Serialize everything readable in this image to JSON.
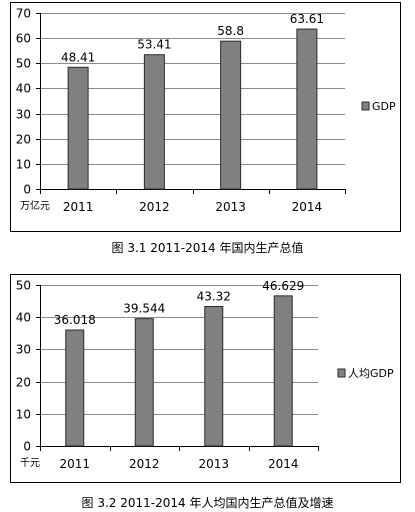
{
  "chart_data": [
    {
      "type": "bar",
      "categories": [
        "2011",
        "2012",
        "2013",
        "2014"
      ],
      "series": [
        {
          "name": "GDP",
          "values": [
            48.41,
            53.41,
            58.8,
            63.61
          ]
        }
      ],
      "data_labels": [
        "48.41",
        "53.41",
        "58.8",
        "63.61"
      ],
      "unit_label": "万亿元",
      "y_ticks": [
        0,
        10,
        20,
        30,
        40,
        50,
        60,
        70
      ],
      "ylim": [
        0,
        70
      ],
      "grid": true,
      "legend": "right",
      "bar_color": "#808080",
      "caption": "图 3.1   2011-2014 年国内生产总值"
    },
    {
      "type": "bar",
      "categories": [
        "2011",
        "2012",
        "2013",
        "2014"
      ],
      "series": [
        {
          "name": "人均GDP",
          "values": [
            36.018,
            39.544,
            43.32,
            46.629
          ]
        }
      ],
      "data_labels": [
        "36.018",
        "39.544",
        "43.32",
        "46.629"
      ],
      "unit_label": "千元",
      "y_ticks": [
        0,
        10,
        20,
        30,
        40,
        50
      ],
      "ylim": [
        0,
        50
      ],
      "grid": true,
      "legend": "right",
      "bar_color": "#808080",
      "caption": "图 3.2   2011-2014 年人均国内生产总值及增速"
    }
  ]
}
